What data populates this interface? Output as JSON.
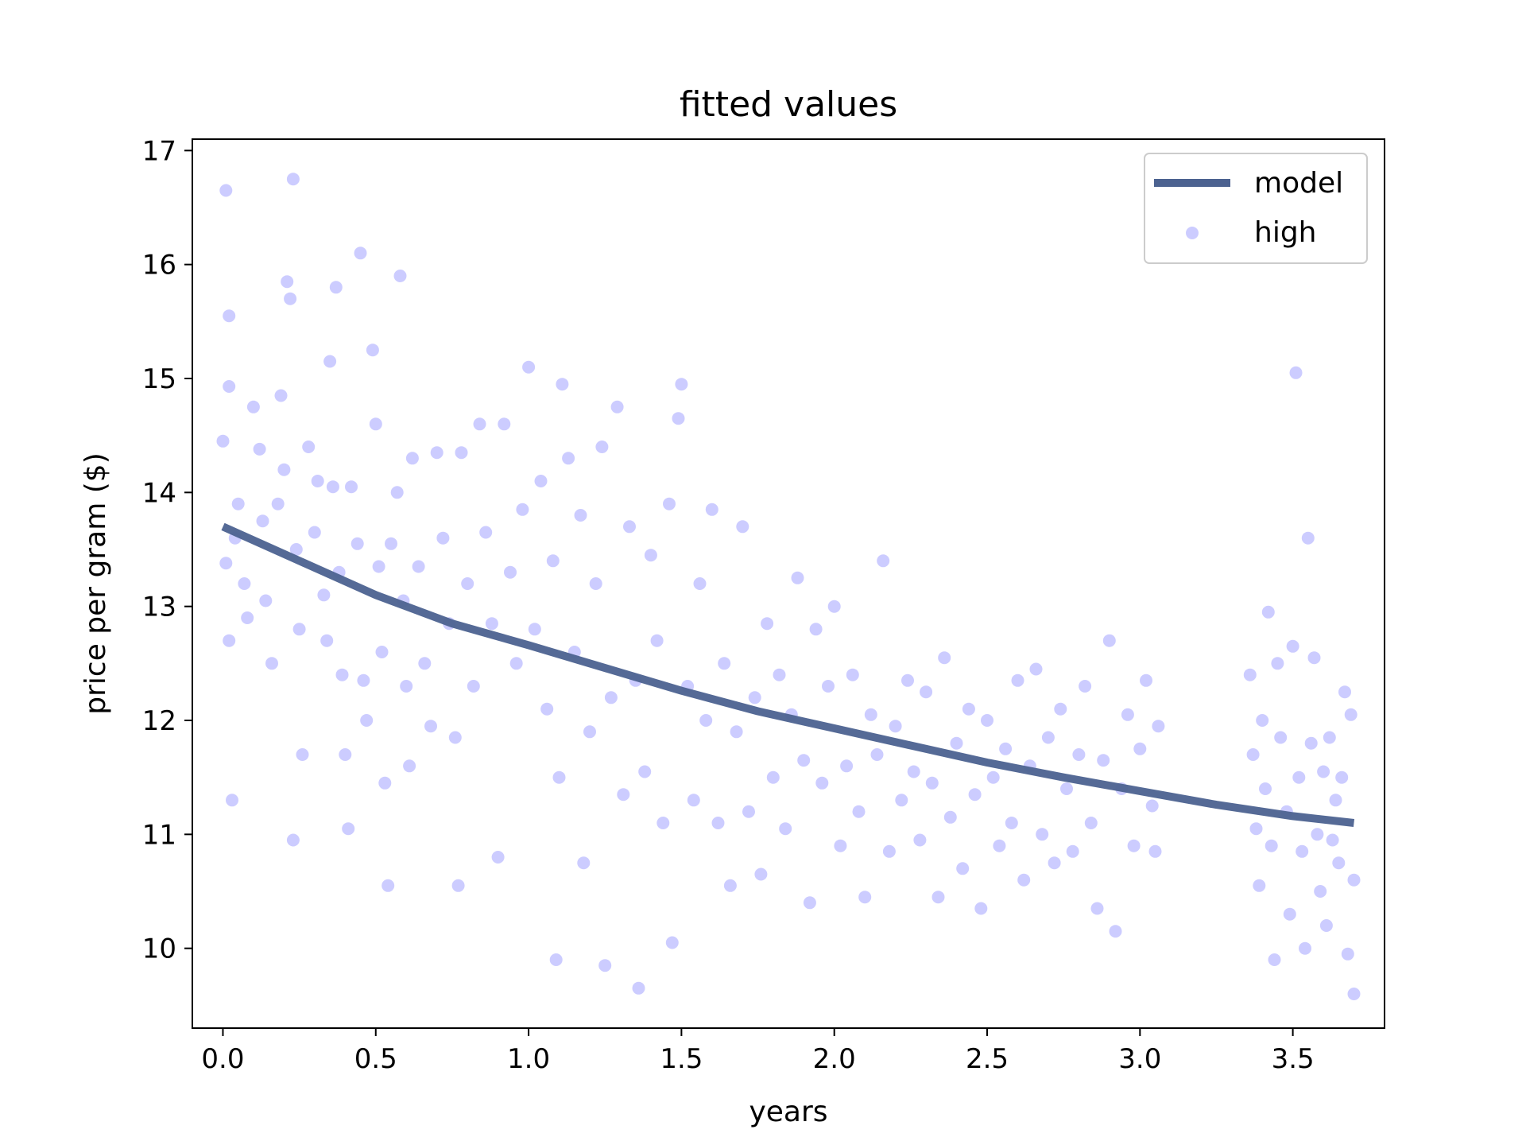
{
  "chart_data": {
    "type": "scatter",
    "title": "fitted values",
    "xlabel": "years",
    "ylabel": "price per gram ($)",
    "xlim": [
      -0.1,
      3.8
    ],
    "ylim": [
      9.3,
      17.1
    ],
    "xticks": [
      "0.0",
      "0.5",
      "1.0",
      "1.5",
      "2.0",
      "2.5",
      "3.0",
      "3.5"
    ],
    "yticks": [
      "10",
      "11",
      "12",
      "13",
      "14",
      "15",
      "16",
      "17"
    ],
    "grid": false,
    "legend": {
      "placement": "top-right",
      "entries": [
        "model",
        "high"
      ]
    },
    "colors": {
      "model": "#4c6290",
      "high": "#0000ff"
    },
    "series": [
      {
        "name": "model",
        "type": "line",
        "x": [
          0.0,
          0.25,
          0.5,
          0.75,
          1.0,
          1.25,
          1.5,
          1.75,
          2.0,
          2.25,
          2.5,
          2.75,
          3.0,
          3.25,
          3.5,
          3.7
        ],
        "y": [
          13.7,
          13.4,
          13.1,
          12.85,
          12.66,
          12.46,
          12.26,
          12.08,
          11.93,
          11.78,
          11.63,
          11.5,
          11.38,
          11.26,
          11.16,
          11.1
        ]
      },
      {
        "name": "high",
        "type": "scatter",
        "points": [
          [
            0.01,
            16.65
          ],
          [
            0.02,
            15.55
          ],
          [
            0.02,
            14.93
          ],
          [
            0.0,
            14.45
          ],
          [
            0.01,
            13.38
          ],
          [
            0.02,
            12.7
          ],
          [
            0.03,
            11.3
          ],
          [
            0.04,
            13.6
          ],
          [
            0.05,
            13.9
          ],
          [
            0.07,
            13.2
          ],
          [
            0.08,
            12.9
          ],
          [
            0.1,
            14.75
          ],
          [
            0.12,
            14.38
          ],
          [
            0.13,
            13.75
          ],
          [
            0.14,
            13.05
          ],
          [
            0.16,
            12.5
          ],
          [
            0.18,
            13.9
          ],
          [
            0.19,
            14.85
          ],
          [
            0.2,
            14.2
          ],
          [
            0.21,
            15.85
          ],
          [
            0.22,
            15.7
          ],
          [
            0.23,
            16.75
          ],
          [
            0.24,
            13.5
          ],
          [
            0.25,
            12.8
          ],
          [
            0.26,
            11.7
          ],
          [
            0.23,
            10.95
          ],
          [
            0.28,
            14.4
          ],
          [
            0.3,
            13.65
          ],
          [
            0.31,
            14.1
          ],
          [
            0.33,
            13.1
          ],
          [
            0.34,
            12.7
          ],
          [
            0.35,
            15.15
          ],
          [
            0.36,
            14.05
          ],
          [
            0.37,
            15.8
          ],
          [
            0.38,
            13.3
          ],
          [
            0.39,
            12.4
          ],
          [
            0.4,
            11.7
          ],
          [
            0.41,
            11.05
          ],
          [
            0.42,
            14.05
          ],
          [
            0.44,
            13.55
          ],
          [
            0.45,
            16.1
          ],
          [
            0.46,
            12.35
          ],
          [
            0.47,
            12.0
          ],
          [
            0.49,
            15.25
          ],
          [
            0.5,
            14.6
          ],
          [
            0.51,
            13.35
          ],
          [
            0.52,
            12.6
          ],
          [
            0.53,
            11.45
          ],
          [
            0.54,
            10.55
          ],
          [
            0.55,
            13.55
          ],
          [
            0.57,
            14.0
          ],
          [
            0.58,
            15.9
          ],
          [
            0.59,
            13.05
          ],
          [
            0.6,
            12.3
          ],
          [
            0.61,
            11.6
          ],
          [
            0.62,
            14.3
          ],
          [
            0.64,
            13.35
          ],
          [
            0.66,
            12.5
          ],
          [
            0.68,
            11.95
          ],
          [
            0.7,
            14.35
          ],
          [
            0.72,
            13.6
          ],
          [
            0.74,
            12.85
          ],
          [
            0.76,
            11.85
          ],
          [
            0.77,
            10.55
          ],
          [
            0.78,
            14.35
          ],
          [
            0.8,
            13.2
          ],
          [
            0.82,
            12.3
          ],
          [
            0.84,
            14.6
          ],
          [
            0.86,
            13.65
          ],
          [
            0.88,
            12.85
          ],
          [
            0.9,
            10.8
          ],
          [
            0.92,
            14.6
          ],
          [
            0.94,
            13.3
          ],
          [
            0.96,
            12.5
          ],
          [
            0.98,
            13.85
          ],
          [
            1.0,
            15.1
          ],
          [
            1.02,
            12.8
          ],
          [
            1.04,
            14.1
          ],
          [
            1.06,
            12.1
          ],
          [
            1.08,
            13.4
          ],
          [
            1.09,
            9.9
          ],
          [
            1.1,
            11.5
          ],
          [
            1.11,
            14.95
          ],
          [
            1.13,
            14.3
          ],
          [
            1.15,
            12.6
          ],
          [
            1.17,
            13.8
          ],
          [
            1.18,
            10.75
          ],
          [
            1.2,
            11.9
          ],
          [
            1.22,
            13.2
          ],
          [
            1.24,
            14.4
          ],
          [
            1.25,
            9.85
          ],
          [
            1.27,
            12.2
          ],
          [
            1.29,
            14.75
          ],
          [
            1.31,
            11.35
          ],
          [
            1.33,
            13.7
          ],
          [
            1.35,
            12.35
          ],
          [
            1.36,
            9.65
          ],
          [
            1.38,
            11.55
          ],
          [
            1.4,
            13.45
          ],
          [
            1.42,
            12.7
          ],
          [
            1.44,
            11.1
          ],
          [
            1.46,
            13.9
          ],
          [
            1.47,
            10.05
          ],
          [
            1.49,
            14.65
          ],
          [
            1.5,
            14.95
          ],
          [
            1.52,
            12.3
          ],
          [
            1.54,
            11.3
          ],
          [
            1.56,
            13.2
          ],
          [
            1.58,
            12.0
          ],
          [
            1.6,
            13.85
          ],
          [
            1.62,
            11.1
          ],
          [
            1.64,
            12.5
          ],
          [
            1.66,
            10.55
          ],
          [
            1.68,
            11.9
          ],
          [
            1.7,
            13.7
          ],
          [
            1.72,
            11.2
          ],
          [
            1.74,
            12.2
          ],
          [
            1.76,
            10.65
          ],
          [
            1.78,
            12.85
          ],
          [
            1.8,
            11.5
          ],
          [
            1.82,
            12.4
          ],
          [
            1.84,
            11.05
          ],
          [
            1.86,
            12.05
          ],
          [
            1.88,
            13.25
          ],
          [
            1.9,
            11.65
          ],
          [
            1.92,
            10.4
          ],
          [
            1.94,
            12.8
          ],
          [
            1.96,
            11.45
          ],
          [
            1.98,
            12.3
          ],
          [
            2.0,
            13.0
          ],
          [
            2.02,
            10.9
          ],
          [
            2.04,
            11.6
          ],
          [
            2.06,
            12.4
          ],
          [
            2.08,
            11.2
          ],
          [
            2.1,
            10.45
          ],
          [
            2.12,
            12.05
          ],
          [
            2.14,
            11.7
          ],
          [
            2.16,
            13.4
          ],
          [
            2.18,
            10.85
          ],
          [
            2.2,
            11.95
          ],
          [
            2.22,
            11.3
          ],
          [
            2.24,
            12.35
          ],
          [
            2.26,
            11.55
          ],
          [
            2.28,
            10.95
          ],
          [
            2.3,
            12.25
          ],
          [
            2.32,
            11.45
          ],
          [
            2.34,
            10.45
          ],
          [
            2.36,
            12.55
          ],
          [
            2.38,
            11.15
          ],
          [
            2.4,
            11.8
          ],
          [
            2.42,
            10.7
          ],
          [
            2.44,
            12.1
          ],
          [
            2.46,
            11.35
          ],
          [
            2.48,
            10.35
          ],
          [
            2.5,
            12.0
          ],
          [
            2.52,
            11.5
          ],
          [
            2.54,
            10.9
          ],
          [
            2.56,
            11.75
          ],
          [
            2.58,
            11.1
          ],
          [
            2.6,
            12.35
          ],
          [
            2.62,
            10.6
          ],
          [
            2.64,
            11.6
          ],
          [
            2.66,
            12.45
          ],
          [
            2.68,
            11.0
          ],
          [
            2.7,
            11.85
          ],
          [
            2.72,
            10.75
          ],
          [
            2.74,
            12.1
          ],
          [
            2.76,
            11.4
          ],
          [
            2.78,
            10.85
          ],
          [
            2.8,
            11.7
          ],
          [
            2.82,
            12.3
          ],
          [
            2.84,
            11.1
          ],
          [
            2.86,
            10.35
          ],
          [
            2.88,
            11.65
          ],
          [
            2.9,
            12.7
          ],
          [
            2.92,
            10.15
          ],
          [
            2.94,
            11.4
          ],
          [
            2.96,
            12.05
          ],
          [
            2.98,
            10.9
          ],
          [
            3.0,
            11.75
          ],
          [
            3.02,
            12.35
          ],
          [
            3.04,
            11.25
          ],
          [
            3.06,
            11.95
          ],
          [
            3.05,
            10.85
          ],
          [
            3.36,
            12.4
          ],
          [
            3.37,
            11.7
          ],
          [
            3.38,
            11.05
          ],
          [
            3.39,
            10.55
          ],
          [
            3.4,
            12.0
          ],
          [
            3.41,
            11.4
          ],
          [
            3.42,
            12.95
          ],
          [
            3.43,
            10.9
          ],
          [
            3.44,
            9.9
          ],
          [
            3.45,
            12.5
          ],
          [
            3.46,
            11.85
          ],
          [
            3.48,
            11.2
          ],
          [
            3.49,
            10.3
          ],
          [
            3.5,
            12.65
          ],
          [
            3.51,
            15.05
          ],
          [
            3.52,
            11.5
          ],
          [
            3.53,
            10.85
          ],
          [
            3.54,
            10.0
          ],
          [
            3.55,
            13.6
          ],
          [
            3.56,
            11.8
          ],
          [
            3.57,
            12.55
          ],
          [
            3.58,
            11.0
          ],
          [
            3.59,
            10.5
          ],
          [
            3.6,
            11.55
          ],
          [
            3.61,
            10.2
          ],
          [
            3.62,
            11.85
          ],
          [
            3.63,
            10.95
          ],
          [
            3.64,
            11.3
          ],
          [
            3.65,
            10.75
          ],
          [
            3.66,
            11.5
          ],
          [
            3.67,
            12.25
          ],
          [
            3.68,
            9.95
          ],
          [
            3.69,
            12.05
          ],
          [
            3.7,
            10.6
          ],
          [
            3.7,
            9.6
          ]
        ]
      }
    ]
  }
}
